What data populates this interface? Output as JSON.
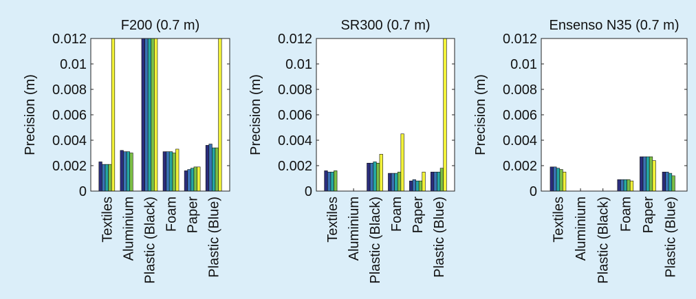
{
  "colors": {
    "background": "#dbeef9",
    "plot_area": "#ffffff",
    "series": [
      "#2b2d7c",
      "#3a72b4",
      "#26a6a2",
      "#7cbf46",
      "#f2f23a"
    ]
  },
  "chart_data": [
    {
      "type": "bar",
      "title": "F200 (0.7 m)",
      "ylabel": "Precision (m)",
      "xlabel": "",
      "ylim": [
        0,
        0.012
      ],
      "yticks": [
        0,
        0.002,
        0.004,
        0.006,
        0.008,
        0.01,
        0.012
      ],
      "ytick_labels": [
        "0",
        "0.002",
        "0.004",
        "0.006",
        "0.008",
        "0.01",
        "0.012"
      ],
      "categories": [
        "Textiles",
        "Aluminium",
        "Plastic (Black)",
        "Foam",
        "Paper",
        "Plastic (Blue)"
      ],
      "grid": false,
      "series": [
        {
          "values": [
            0.0023,
            0.0032,
            0.012,
            0.0031,
            0.0016,
            0.0036
          ]
        },
        {
          "values": [
            0.0021,
            0.0031,
            0.012,
            0.0031,
            0.0017,
            0.0037
          ]
        },
        {
          "values": [
            0.0021,
            0.0031,
            0.012,
            0.0031,
            0.0018,
            0.0034
          ]
        },
        {
          "values": [
            0.0021,
            0.003,
            0.012,
            0.003,
            0.0019,
            0.0034
          ]
        },
        {
          "values": [
            0.012,
            null,
            0.012,
            0.0033,
            0.0019,
            0.012
          ]
        }
      ]
    },
    {
      "type": "bar",
      "title": "SR300 (0.7 m)",
      "ylabel": "Precision (m)",
      "xlabel": "",
      "ylim": [
        0,
        0.012
      ],
      "yticks": [
        0,
        0.002,
        0.004,
        0.006,
        0.008,
        0.01,
        0.012
      ],
      "ytick_labels": [
        "0",
        "0.002",
        "0.004",
        "0.006",
        "0.008",
        "0.01",
        "0.012"
      ],
      "categories": [
        "Textiles",
        "Aluminium",
        "Plastic (Black)",
        "Foam",
        "Paper",
        "Plastic (Blue)"
      ],
      "grid": false,
      "series": [
        {
          "values": [
            0.0016,
            null,
            0.0022,
            0.0014,
            0.0008,
            0.0015
          ]
        },
        {
          "values": [
            0.0015,
            null,
            0.0022,
            0.0014,
            0.0009,
            0.0015
          ]
        },
        {
          "values": [
            0.0015,
            null,
            0.0023,
            0.0014,
            0.0008,
            0.0015
          ]
        },
        {
          "values": [
            0.0016,
            null,
            0.0022,
            0.0015,
            0.0008,
            0.0018
          ]
        },
        {
          "values": [
            null,
            null,
            0.0029,
            0.0045,
            0.0015,
            0.012
          ]
        }
      ]
    },
    {
      "type": "bar",
      "title": "Ensenso N35 (0.7 m)",
      "ylabel": "Precision (m)",
      "xlabel": "",
      "ylim": [
        0,
        0.012
      ],
      "yticks": [
        0,
        0.002,
        0.004,
        0.006,
        0.008,
        0.01,
        0.012
      ],
      "ytick_labels": [
        "0",
        "0.002",
        "0.004",
        "0.006",
        "0.008",
        "0.01",
        "0.012"
      ],
      "categories": [
        "Textiles",
        "Aluminium",
        "Plastic (Black)",
        "Foam",
        "Paper",
        "Plastic (Blue)"
      ],
      "grid": false,
      "series": [
        {
          "values": [
            0.0019,
            null,
            null,
            0.0009,
            0.0027,
            0.0015
          ]
        },
        {
          "values": [
            0.0019,
            null,
            null,
            0.0009,
            0.0027,
            0.0015
          ]
        },
        {
          "values": [
            0.0018,
            null,
            null,
            0.0009,
            0.0027,
            0.0014
          ]
        },
        {
          "values": [
            0.0017,
            null,
            null,
            0.0009,
            0.0027,
            0.0012
          ]
        },
        {
          "values": [
            0.0015,
            null,
            null,
            0.0008,
            0.0024,
            null
          ]
        }
      ]
    }
  ]
}
